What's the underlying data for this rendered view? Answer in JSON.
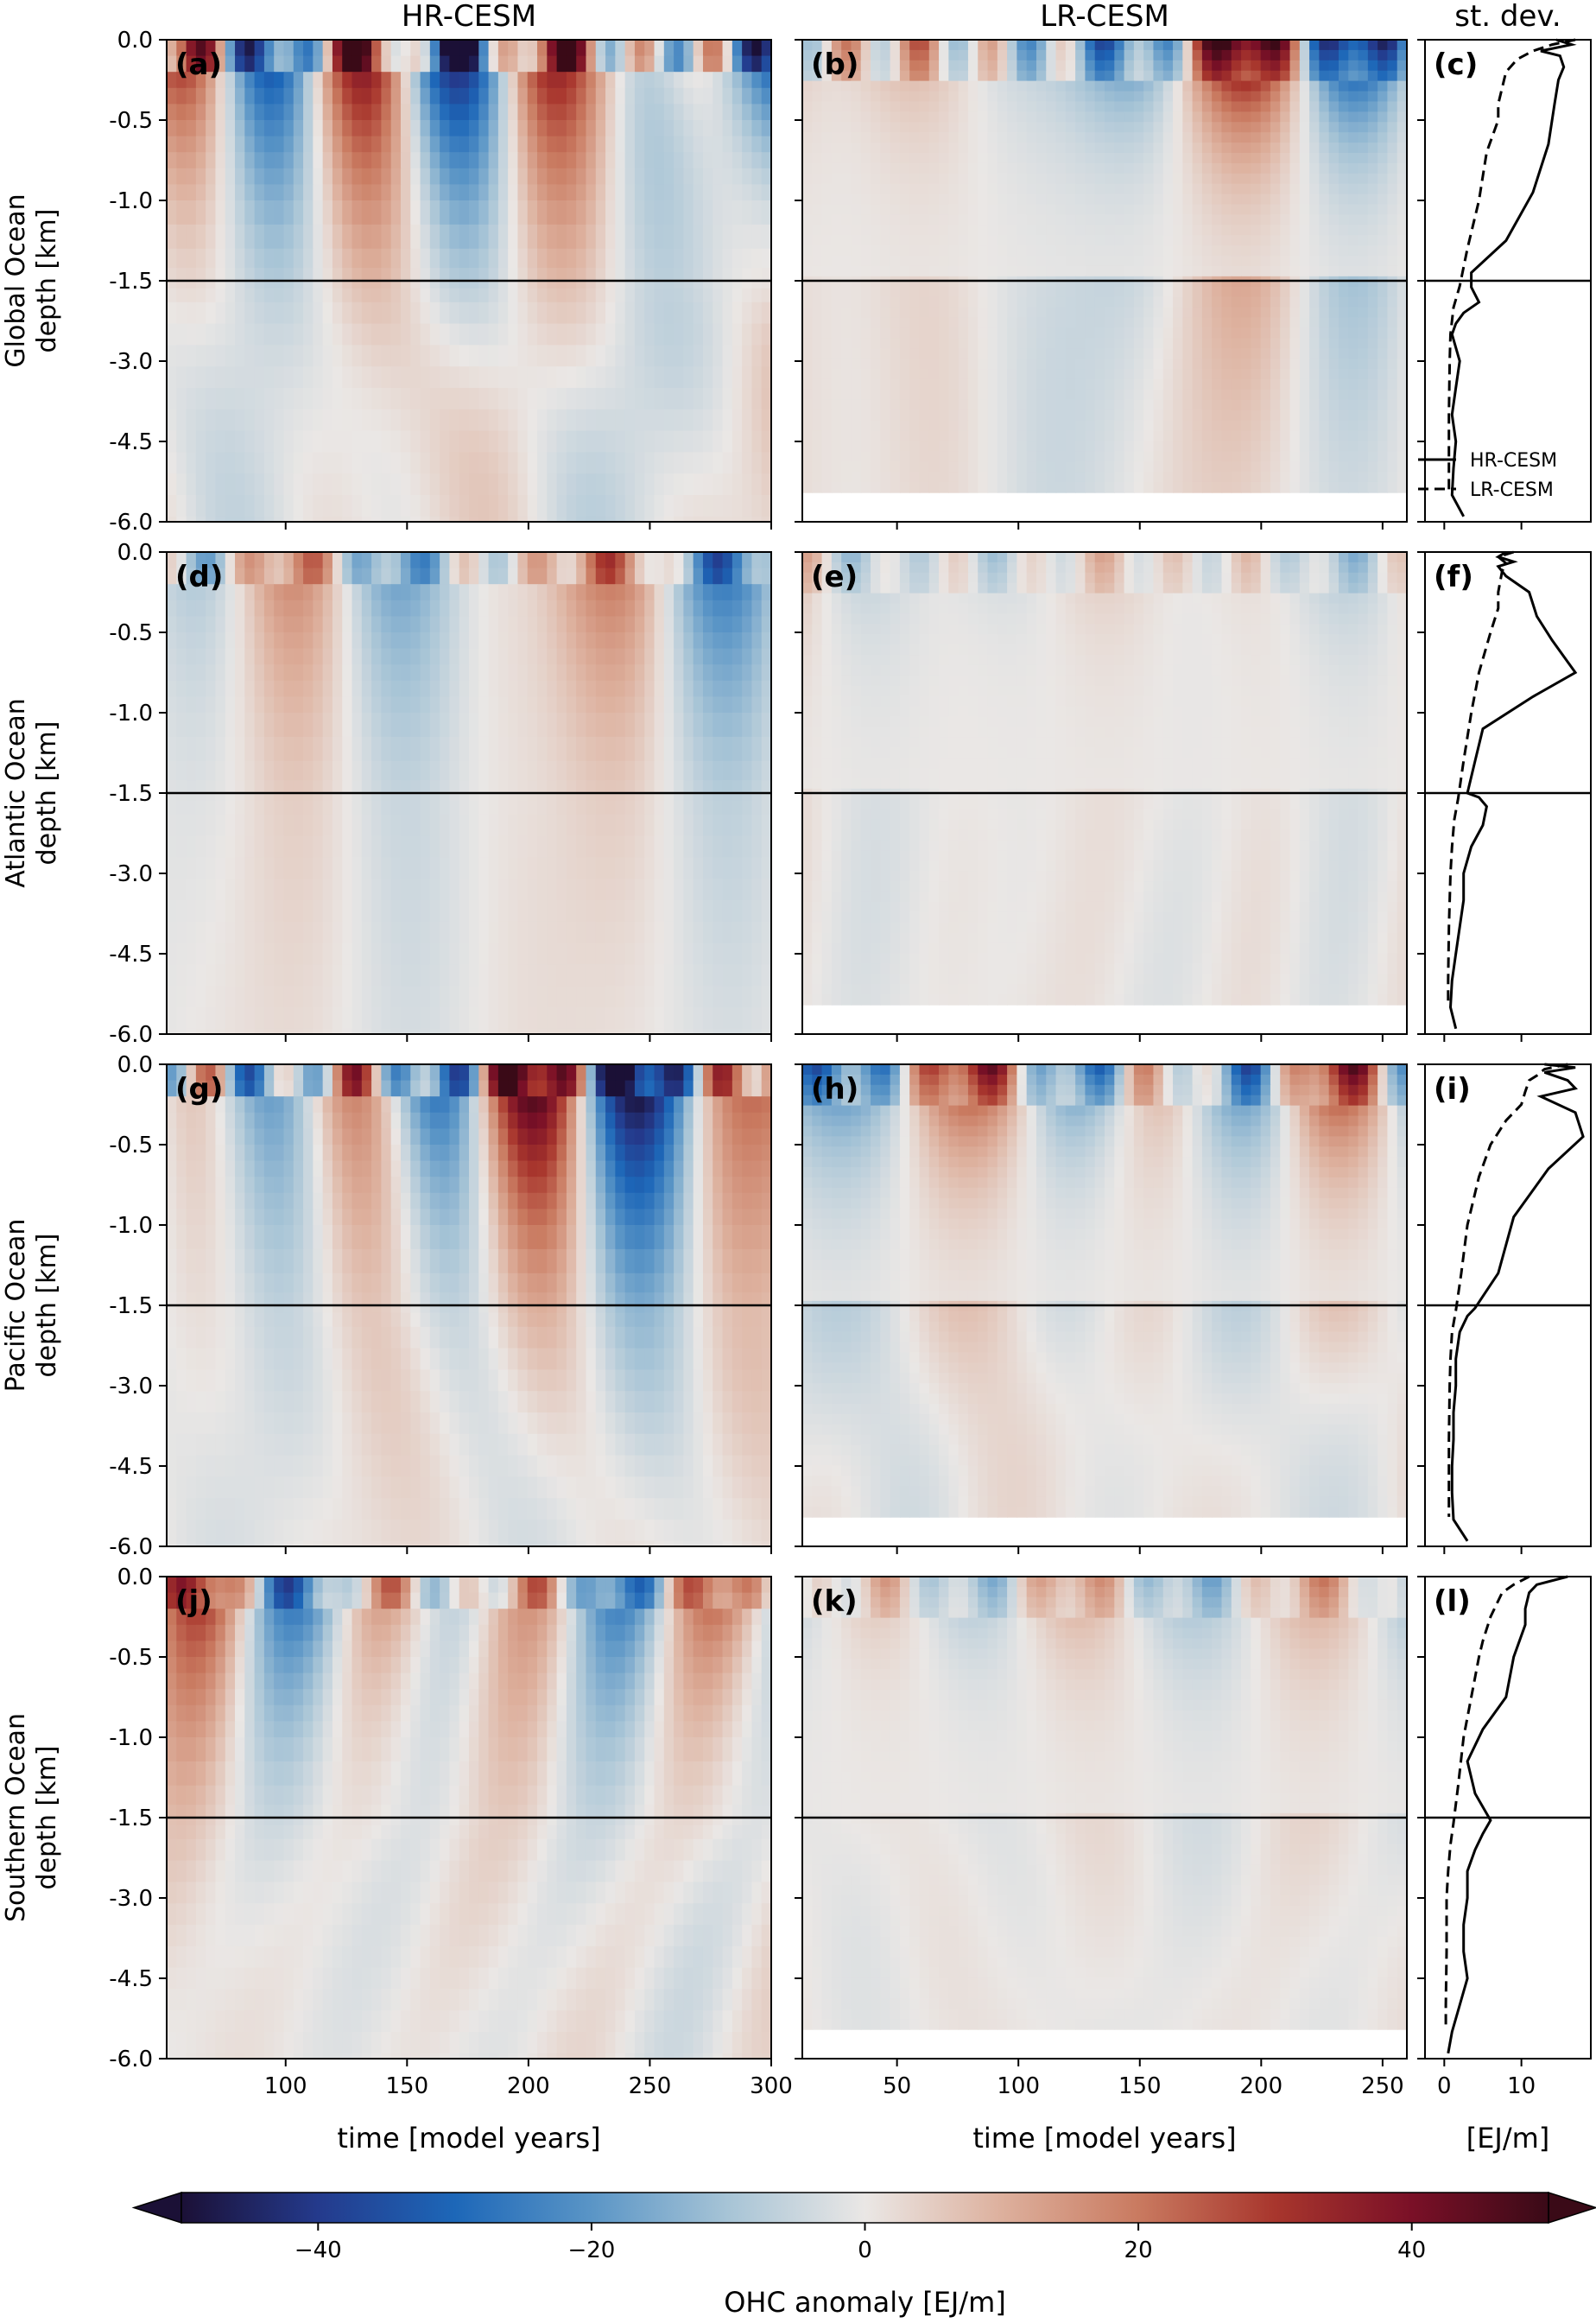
{
  "chart_data": {
    "type": "heatmap",
    "column_titles": [
      "HR-CESM",
      "LR-CESM",
      "st. dev."
    ],
    "row_labels": [
      "Global Ocean\ndepth [km]",
      "Atlantic Ocean\ndepth [km]",
      "Pacific Ocean\ndepth [km]",
      "Southern Ocean\ndepth [km]"
    ],
    "panel_letters": [
      [
        "(a)",
        "(b)",
        "(c)"
      ],
      [
        "(d)",
        "(e)",
        "(f)"
      ],
      [
        "(g)",
        "(h)",
        "(i)"
      ],
      [
        "(j)",
        "(k)",
        "(l)"
      ]
    ],
    "y_ticks": [
      "0.0",
      "-0.5",
      "-1.0",
      "-1.5",
      "-3.0",
      "-4.5",
      "-6.0"
    ],
    "y_note": "upper half of each panel spans 0 to -1.5 km linearly; lower half spans -1.5 to -6.0 km",
    "hr_xlim": [
      51,
      300
    ],
    "hr_xticks": [
      "100",
      "150",
      "200",
      "250",
      "300"
    ],
    "lr_xlim": [
      11,
      260
    ],
    "lr_xticks": [
      "50",
      "100",
      "150",
      "200",
      "250"
    ],
    "std_xlim": [
      -2.5,
      19
    ],
    "std_xticks": [
      "0",
      "10"
    ],
    "xlabels": [
      "time [model years]",
      "time [model years]",
      "[EJ/m]"
    ],
    "separator_depth_km": -1.5,
    "legend": {
      "solid": "HR-CESM",
      "dashed": "LR-CESM"
    },
    "colorbar": {
      "label": "OHC anomaly [EJ/m]",
      "range": [
        -50,
        50
      ],
      "ticks": [
        "−40",
        "−20",
        "0",
        "20",
        "40"
      ],
      "colors": [
        "#1b1036",
        "#243a8c",
        "#1d67b8",
        "#5a95c6",
        "#a7c4d6",
        "#eae7e5",
        "#ddb09d",
        "#c97a60",
        "#a8362d",
        "#7a1027",
        "#3a0a17"
      ]
    },
    "std_profiles": [
      {
        "name": "Global",
        "hr": [
          [
            0,
            14.5
          ],
          [
            0.03,
            16.5
          ],
          [
            0.07,
            12.5
          ],
          [
            0.1,
            15
          ],
          [
            0.17,
            15.5
          ],
          [
            0.25,
            14.8
          ],
          [
            0.4,
            14.3
          ],
          [
            0.65,
            13.5
          ],
          [
            0.95,
            11.5
          ],
          [
            1.25,
            8
          ],
          [
            1.45,
            3.5
          ],
          [
            1.62,
            3.5
          ],
          [
            1.9,
            4.5
          ],
          [
            2.1,
            2.5
          ],
          [
            2.3,
            1.5
          ],
          [
            2.5,
            1
          ],
          [
            3.0,
            2
          ],
          [
            3.5,
            1.5
          ],
          [
            4.0,
            1
          ],
          [
            4.5,
            1.5
          ],
          [
            5.0,
            1.2
          ],
          [
            5.5,
            1
          ],
          [
            5.9,
            2.5
          ]
        ],
        "lr": [
          [
            0,
            17
          ],
          [
            0.03,
            14
          ],
          [
            0.07,
            11.5
          ],
          [
            0.12,
            9.5
          ],
          [
            0.2,
            8
          ],
          [
            0.4,
            7
          ],
          [
            0.5,
            7
          ],
          [
            0.7,
            5.5
          ],
          [
            1.0,
            4.5
          ],
          [
            1.3,
            3
          ],
          [
            1.6,
            2
          ],
          [
            2.0,
            1.2
          ],
          [
            2.5,
            0.8
          ],
          [
            3.0,
            0.7
          ],
          [
            4.0,
            0.6
          ],
          [
            5.0,
            0.6
          ],
          [
            5.45,
            0.6
          ]
        ]
      },
      {
        "name": "Atlantic",
        "hr": [
          [
            0,
            8
          ],
          [
            0.03,
            7
          ],
          [
            0.06,
            9
          ],
          [
            0.09,
            7
          ],
          [
            0.15,
            8
          ],
          [
            0.25,
            11
          ],
          [
            0.4,
            12
          ],
          [
            0.55,
            14
          ],
          [
            0.75,
            17
          ],
          [
            0.9,
            11.5
          ],
          [
            1.1,
            5
          ],
          [
            1.3,
            4
          ],
          [
            1.5,
            3
          ],
          [
            1.58,
            4.5
          ],
          [
            1.75,
            5.5
          ],
          [
            2.1,
            5
          ],
          [
            2.5,
            3.5
          ],
          [
            3.0,
            2.5
          ],
          [
            3.5,
            2.5
          ],
          [
            4.0,
            2
          ],
          [
            4.5,
            1.5
          ],
          [
            5.0,
            1
          ],
          [
            5.5,
            0.8
          ],
          [
            5.9,
            1.5
          ]
        ],
        "lr": [
          [
            0,
            9
          ],
          [
            0.03,
            7
          ],
          [
            0.07,
            8
          ],
          [
            0.12,
            7.5
          ],
          [
            0.25,
            7
          ],
          [
            0.35,
            7
          ],
          [
            0.5,
            6
          ],
          [
            0.75,
            4.5
          ],
          [
            1.0,
            3.5
          ],
          [
            1.3,
            2.5
          ],
          [
            1.6,
            1.8
          ],
          [
            2.0,
            1.3
          ],
          [
            2.5,
            1
          ],
          [
            3.0,
            0.8
          ],
          [
            4.0,
            0.6
          ],
          [
            5.0,
            0.5
          ],
          [
            5.4,
            0.5
          ]
        ]
      },
      {
        "name": "Pacific",
        "hr": [
          [
            0,
            13
          ],
          [
            0.02,
            17
          ],
          [
            0.05,
            13
          ],
          [
            0.1,
            16
          ],
          [
            0.15,
            17
          ],
          [
            0.2,
            12.5
          ],
          [
            0.3,
            17
          ],
          [
            0.45,
            18
          ],
          [
            0.65,
            13.5
          ],
          [
            0.95,
            9
          ],
          [
            1.3,
            7
          ],
          [
            1.55,
            4
          ],
          [
            1.7,
            3
          ],
          [
            2.0,
            2
          ],
          [
            2.5,
            1.5
          ],
          [
            3.0,
            1.5
          ],
          [
            3.5,
            1.2
          ],
          [
            4.0,
            1.2
          ],
          [
            4.5,
            1
          ],
          [
            5.0,
            1
          ],
          [
            5.5,
            1.2
          ],
          [
            5.9,
            3
          ]
        ],
        "lr": [
          [
            0,
            16
          ],
          [
            0.03,
            13
          ],
          [
            0.07,
            12
          ],
          [
            0.1,
            11
          ],
          [
            0.17,
            10.5
          ],
          [
            0.25,
            10
          ],
          [
            0.35,
            8
          ],
          [
            0.5,
            6
          ],
          [
            0.7,
            4.5
          ],
          [
            1.0,
            3
          ],
          [
            1.3,
            2.2
          ],
          [
            1.6,
            1.5
          ],
          [
            2.0,
            1
          ],
          [
            2.5,
            0.8
          ],
          [
            3.0,
            0.7
          ],
          [
            4.0,
            0.6
          ],
          [
            5.0,
            0.6
          ],
          [
            5.45,
            0.6
          ]
        ]
      },
      {
        "name": "Southern",
        "hr": [
          [
            0,
            16
          ],
          [
            0.05,
            12
          ],
          [
            0.1,
            11
          ],
          [
            0.2,
            10.5
          ],
          [
            0.3,
            10.5
          ],
          [
            0.5,
            9
          ],
          [
            0.75,
            8
          ],
          [
            0.95,
            5
          ],
          [
            1.15,
            3
          ],
          [
            1.35,
            4
          ],
          [
            1.55,
            6
          ],
          [
            1.8,
            5
          ],
          [
            2.1,
            4
          ],
          [
            2.5,
            3
          ],
          [
            3.0,
            3
          ],
          [
            3.5,
            2.5
          ],
          [
            4.0,
            2.5
          ],
          [
            4.5,
            3
          ],
          [
            5.0,
            2
          ],
          [
            5.5,
            1
          ],
          [
            5.9,
            0.5
          ]
        ],
        "lr": [
          [
            0,
            11
          ],
          [
            0.05,
            9
          ],
          [
            0.1,
            7.5
          ],
          [
            0.25,
            6
          ],
          [
            0.4,
            5
          ],
          [
            0.5,
            4.5
          ],
          [
            0.75,
            3.5
          ],
          [
            1.0,
            2.5
          ],
          [
            1.3,
            1.8
          ],
          [
            1.6,
            1.2
          ],
          [
            2.0,
            0.8
          ],
          [
            2.5,
            0.5
          ],
          [
            3.0,
            0.3
          ],
          [
            4.0,
            0.3
          ],
          [
            5.0,
            0.2
          ],
          [
            5.45,
            0.2
          ]
        ]
      }
    ],
    "heatmap_fields": {
      "description": "synthetic anomaly fields approximating the depicted patterns",
      "hr_amplitude": [
        48,
        22,
        45,
        24
      ],
      "lr_amplitude": [
        35,
        14,
        30,
        16
      ],
      "lr_bottom_depth_km": -5.45
    }
  }
}
